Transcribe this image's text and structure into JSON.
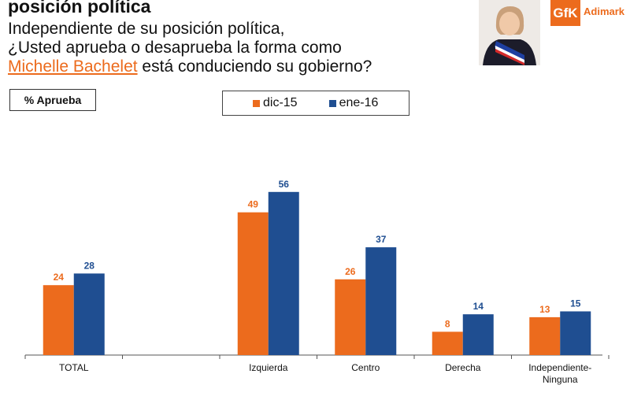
{
  "header": {
    "title": "posición política",
    "question_line1": "Independiente de su posición política,",
    "question_line2": "¿Usted aprueba o desaprueba la forma como",
    "question_highlight": "Michelle Bachelet",
    "question_rest": " está conduciendo su gobierno?"
  },
  "badge": {
    "label": "% Aprueba"
  },
  "logo": {
    "mark": "GfK",
    "name": "Adimark"
  },
  "colors": {
    "series1": "#ec6b1d",
    "series2": "#1f4e91"
  },
  "chart_data": {
    "type": "bar",
    "categories": [
      "TOTAL",
      "",
      "Izquierda",
      "Centro",
      "Derecha",
      "Independiente-\nNinguna"
    ],
    "series": [
      {
        "name": "dic-15",
        "values": [
          24,
          null,
          49,
          26,
          8,
          13
        ]
      },
      {
        "name": "ene-16",
        "values": [
          28,
          null,
          56,
          37,
          14,
          15
        ]
      }
    ],
    "ylim": [
      0,
      70
    ],
    "legend_position": "top-center",
    "grid": false
  }
}
